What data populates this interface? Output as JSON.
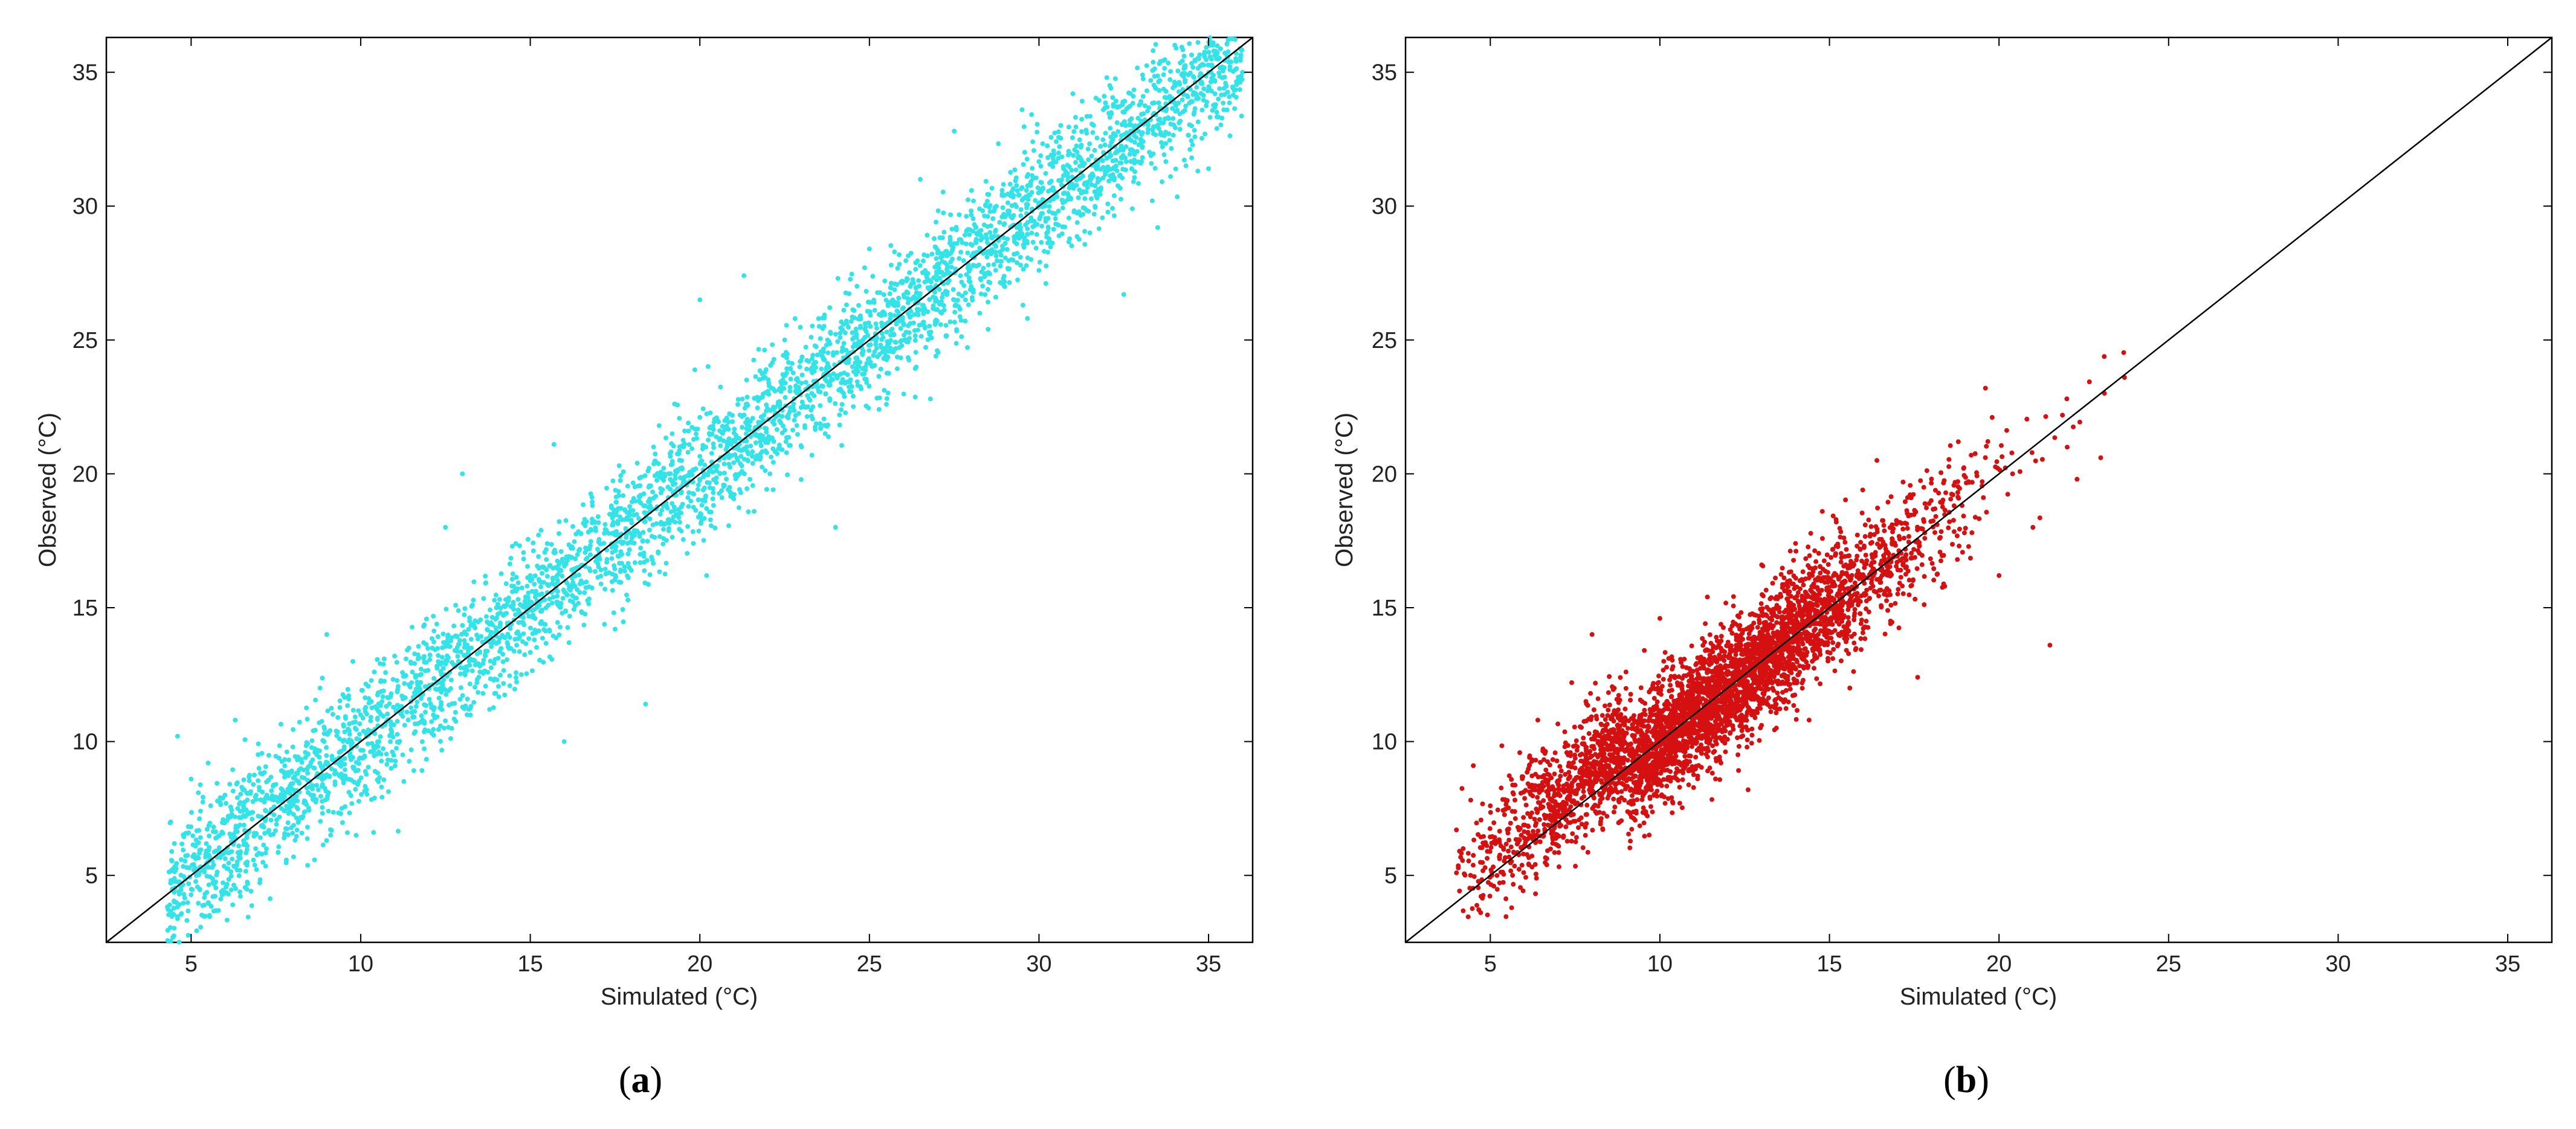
{
  "chart_data": [
    {
      "type": "scatter",
      "panel": "(a)",
      "caption": {
        "open": "(",
        "letter": "a",
        "close": ")"
      },
      "title": "",
      "xlabel": "Simulated (°C)",
      "ylabel": "Observed (°C)",
      "xlim": [
        2.5,
        36.3
      ],
      "ylim": [
        2.5,
        36.3
      ],
      "xticks": [
        5,
        10,
        15,
        20,
        25,
        30,
        35
      ],
      "yticks": [
        5,
        10,
        15,
        20,
        25,
        30,
        35
      ],
      "grid": false,
      "reference_line": "1:1",
      "marker_color": "#33e3e8",
      "approx_point_count": 4200,
      "x_range_of_points": [
        4.3,
        36.0
      ],
      "relation": "observed ≈ simulated; scatter roughly ±2.5 °C about the 1:1 line",
      "series": [
        {
          "values": [
            [
              4.4,
              7.0
            ],
            [
              4.6,
              10.2
            ],
            [
              5.0,
              8.6
            ],
            [
              5.5,
              9.2
            ],
            [
              6.0,
              8.0
            ],
            [
              6.3,
              10.8
            ],
            [
              7.0,
              9.0
            ],
            [
              7.5,
              8.4
            ],
            [
              8.0,
              9.8
            ],
            [
              8.3,
              7.2
            ],
            [
              8.8,
              12.0
            ],
            [
              9.0,
              14.0
            ],
            [
              9.5,
              10.6
            ],
            [
              10.0,
              11.0
            ],
            [
              10.4,
              12.6
            ],
            [
              10.9,
              9.0
            ],
            [
              11.5,
              12.2
            ],
            [
              12.0,
              10.4
            ],
            [
              12.5,
              18.0
            ],
            [
              13.0,
              20.0
            ],
            [
              13.2,
              13.0
            ],
            [
              13.8,
              11.2
            ],
            [
              14.0,
              15.0
            ],
            [
              14.6,
              13.6
            ],
            [
              15.0,
              16.2
            ],
            [
              15.7,
              21.1
            ],
            [
              16.0,
              10.0
            ],
            [
              16.5,
              16.0
            ],
            [
              17.0,
              18.4
            ],
            [
              17.5,
              14.2
            ],
            [
              18.0,
              17.6
            ],
            [
              18.4,
              11.4
            ],
            [
              18.8,
              21.8
            ],
            [
              19.3,
              19.2
            ],
            [
              20.0,
              26.5
            ],
            [
              20.2,
              16.2
            ],
            [
              20.8,
              21.0
            ],
            [
              21.3,
              27.4
            ],
            [
              21.6,
              18.6
            ],
            [
              22.0,
              22.4
            ],
            [
              22.5,
              25.0
            ],
            [
              23.0,
              21.0
            ],
            [
              23.5,
              25.8
            ],
            [
              24.0,
              18.0
            ],
            [
              24.5,
              24.0
            ],
            [
              25.0,
              28.4
            ],
            [
              25.5,
              22.6
            ],
            [
              26.0,
              26.2
            ],
            [
              26.5,
              31.0
            ],
            [
              27.0,
              24.6
            ],
            [
              27.5,
              32.8
            ],
            [
              28.0,
              27.0
            ],
            [
              28.5,
              25.4
            ],
            [
              29.0,
              29.6
            ],
            [
              29.5,
              33.6
            ],
            [
              30.0,
              27.6
            ],
            [
              30.5,
              30.4
            ],
            [
              31.0,
              34.2
            ],
            [
              31.5,
              29.0
            ],
            [
              32.0,
              34.8
            ],
            [
              32.5,
              26.7
            ],
            [
              33.0,
              31.6
            ],
            [
              33.5,
              29.2
            ],
            [
              34.0,
              34.5
            ],
            [
              34.5,
              33.0
            ],
            [
              35.0,
              31.4
            ],
            [
              35.4,
              35.2
            ],
            [
              36.0,
              35.0
            ]
          ]
        }
      ]
    },
    {
      "type": "scatter",
      "panel": "(b)",
      "caption": {
        "open": "(",
        "letter": "b",
        "close": ")"
      },
      "title": "",
      "xlabel": "Simulated (°C)",
      "ylabel": "Observed (°C)",
      "xlim": [
        2.5,
        36.3
      ],
      "ylim": [
        2.5,
        36.3
      ],
      "xticks": [
        5,
        10,
        15,
        20,
        25,
        30,
        35
      ],
      "yticks": [
        5,
        10,
        15,
        20,
        25,
        30,
        35
      ],
      "grid": false,
      "reference_line": "1:1",
      "marker_color": "#d41010",
      "approx_point_count": 4200,
      "x_range_of_points": [
        4.0,
        23.7
      ],
      "relation": "observed ≈ simulated; scatter roughly ±2 °C about the 1:1 line",
      "series": [
        {
          "values": [
            [
              4.0,
              6.7
            ],
            [
              4.2,
              6.0
            ],
            [
              4.5,
              9.1
            ],
            [
              5.0,
              7.6
            ],
            [
              5.5,
              7.8
            ],
            [
              6.0,
              6.4
            ],
            [
              6.4,
              10.8
            ],
            [
              7.0,
              8.4
            ],
            [
              7.4,
              12.2
            ],
            [
              7.8,
              6.8
            ],
            [
              8.0,
              14.0
            ],
            [
              8.5,
              8.0
            ],
            [
              9.0,
              12.6
            ],
            [
              9.3,
              7.4
            ],
            [
              9.8,
              10.4
            ],
            [
              10.0,
              14.6
            ],
            [
              10.5,
              8.6
            ],
            [
              11.0,
              11.6
            ],
            [
              11.4,
              15.4
            ],
            [
              11.8,
              9.2
            ],
            [
              12.2,
              13.0
            ],
            [
              12.6,
              8.2
            ],
            [
              13.0,
              16.6
            ],
            [
              13.5,
              12.2
            ],
            [
              14.0,
              17.4
            ],
            [
              14.4,
              10.8
            ],
            [
              14.8,
              14.6
            ],
            [
              15.2,
              18.2
            ],
            [
              15.6,
              12.0
            ],
            [
              16.0,
              16.0
            ],
            [
              16.4,
              20.5
            ],
            [
              16.8,
              14.4
            ],
            [
              17.2,
              17.6
            ],
            [
              17.6,
              12.4
            ],
            [
              18.0,
              19.0
            ],
            [
              18.4,
              15.8
            ],
            [
              18.8,
              21.2
            ],
            [
              19.2,
              17.8
            ],
            [
              19.6,
              23.2
            ],
            [
              20.0,
              16.2
            ],
            [
              20.4,
              20.0
            ],
            [
              21.0,
              18.0
            ],
            [
              21.5,
              13.6
            ],
            [
              22.0,
              22.8
            ],
            [
              22.3,
              19.8
            ],
            [
              23.0,
              20.6
            ],
            [
              23.7,
              23.6
            ]
          ]
        }
      ]
    }
  ]
}
